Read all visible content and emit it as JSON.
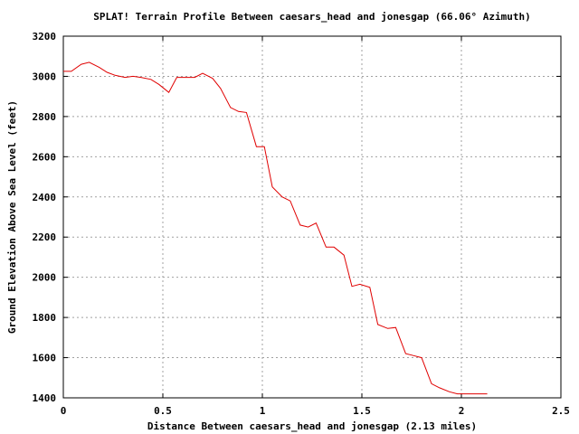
{
  "chart_data": {
    "type": "line",
    "title": "SPLAT! Terrain Profile Between caesars_head and jonesgap (66.06° Azimuth)",
    "xlabel": "Distance Between caesars_head and jonesgap (2.13 miles)",
    "ylabel": "Ground Elevation Above Sea Level (feet)",
    "xlim": [
      0,
      2.5
    ],
    "ylim": [
      1400,
      3200
    ],
    "xticks": [
      0,
      0.5,
      1,
      1.5,
      2,
      2.5
    ],
    "xtick_labels": [
      "0",
      "0.5",
      "1",
      "1.5",
      "2",
      "2.5"
    ],
    "yticks": [
      1400,
      1600,
      1800,
      2000,
      2200,
      2400,
      2600,
      2800,
      3000,
      3200
    ],
    "ytick_labels": [
      "1400",
      "1600",
      "1800",
      "2000",
      "2200",
      "2400",
      "2600",
      "2800",
      "3000",
      "3200"
    ],
    "grid": true,
    "series": [
      {
        "color": "#e00000",
        "x": [
          0,
          0.04,
          0.09,
          0.13,
          0.18,
          0.22,
          0.26,
          0.31,
          0.35,
          0.39,
          0.44,
          0.48,
          0.53,
          0.57,
          0.62,
          0.66,
          0.7,
          0.75,
          0.79,
          0.84,
          0.88,
          0.92,
          0.97,
          1.01,
          1.05,
          1.1,
          1.14,
          1.19,
          1.23,
          1.27,
          1.32,
          1.36,
          1.41,
          1.45,
          1.49,
          1.54,
          1.58,
          1.63,
          1.67,
          1.72,
          1.76,
          1.8,
          1.85,
          1.89,
          1.94,
          1.98,
          2.02,
          2.07,
          2.11,
          2.13
        ],
        "y": [
          3025,
          3025,
          3060,
          3070,
          3045,
          3020,
          3005,
          2995,
          3000,
          2995,
          2985,
          2960,
          2920,
          2995,
          2995,
          2995,
          3015,
          2990,
          2940,
          2845,
          2825,
          2820,
          2650,
          2650,
          2450,
          2400,
          2380,
          2260,
          2250,
          2270,
          2150,
          2150,
          2110,
          1955,
          1965,
          1950,
          1765,
          1745,
          1750,
          1620,
          1610,
          1600,
          1470,
          1450,
          1430,
          1420,
          1420,
          1420,
          1420,
          1420
        ]
      }
    ]
  }
}
